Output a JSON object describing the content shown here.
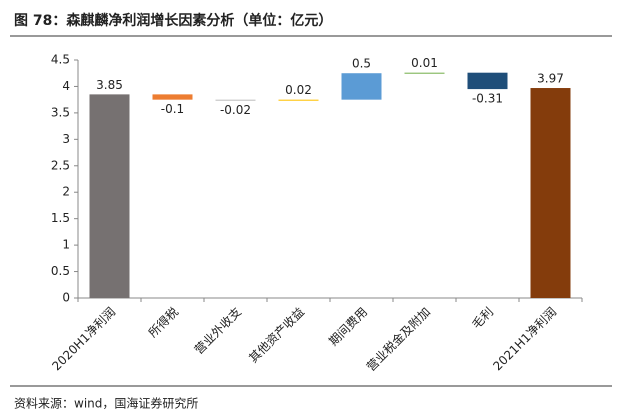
{
  "chart_data": {
    "type": "waterfall",
    "title": "图 78：森麒麟净利润增长因素分析（单位：亿元）",
    "source": "资料来源：wind，国海证券研究所",
    "categories": [
      "2020H1净利润",
      "所得税",
      "营业外收支",
      "其他资产收益",
      "期间费用",
      "营业税金及附加",
      "毛利",
      "2021H1净利润"
    ],
    "values": [
      3.85,
      -0.1,
      -0.02,
      0.02,
      0.5,
      0.01,
      -0.31,
      3.97
    ],
    "colors": [
      "#767171",
      "#ed7d31",
      "#bfbfbf",
      "#ffc000",
      "#5b9bd5",
      "#70ad47",
      "#1f4e79",
      "#843c0c"
    ],
    "ylim": [
      0,
      4.5
    ],
    "yticks": [
      0,
      0.5,
      1,
      1.5,
      2,
      2.5,
      3,
      3.5,
      4,
      4.5
    ]
  }
}
